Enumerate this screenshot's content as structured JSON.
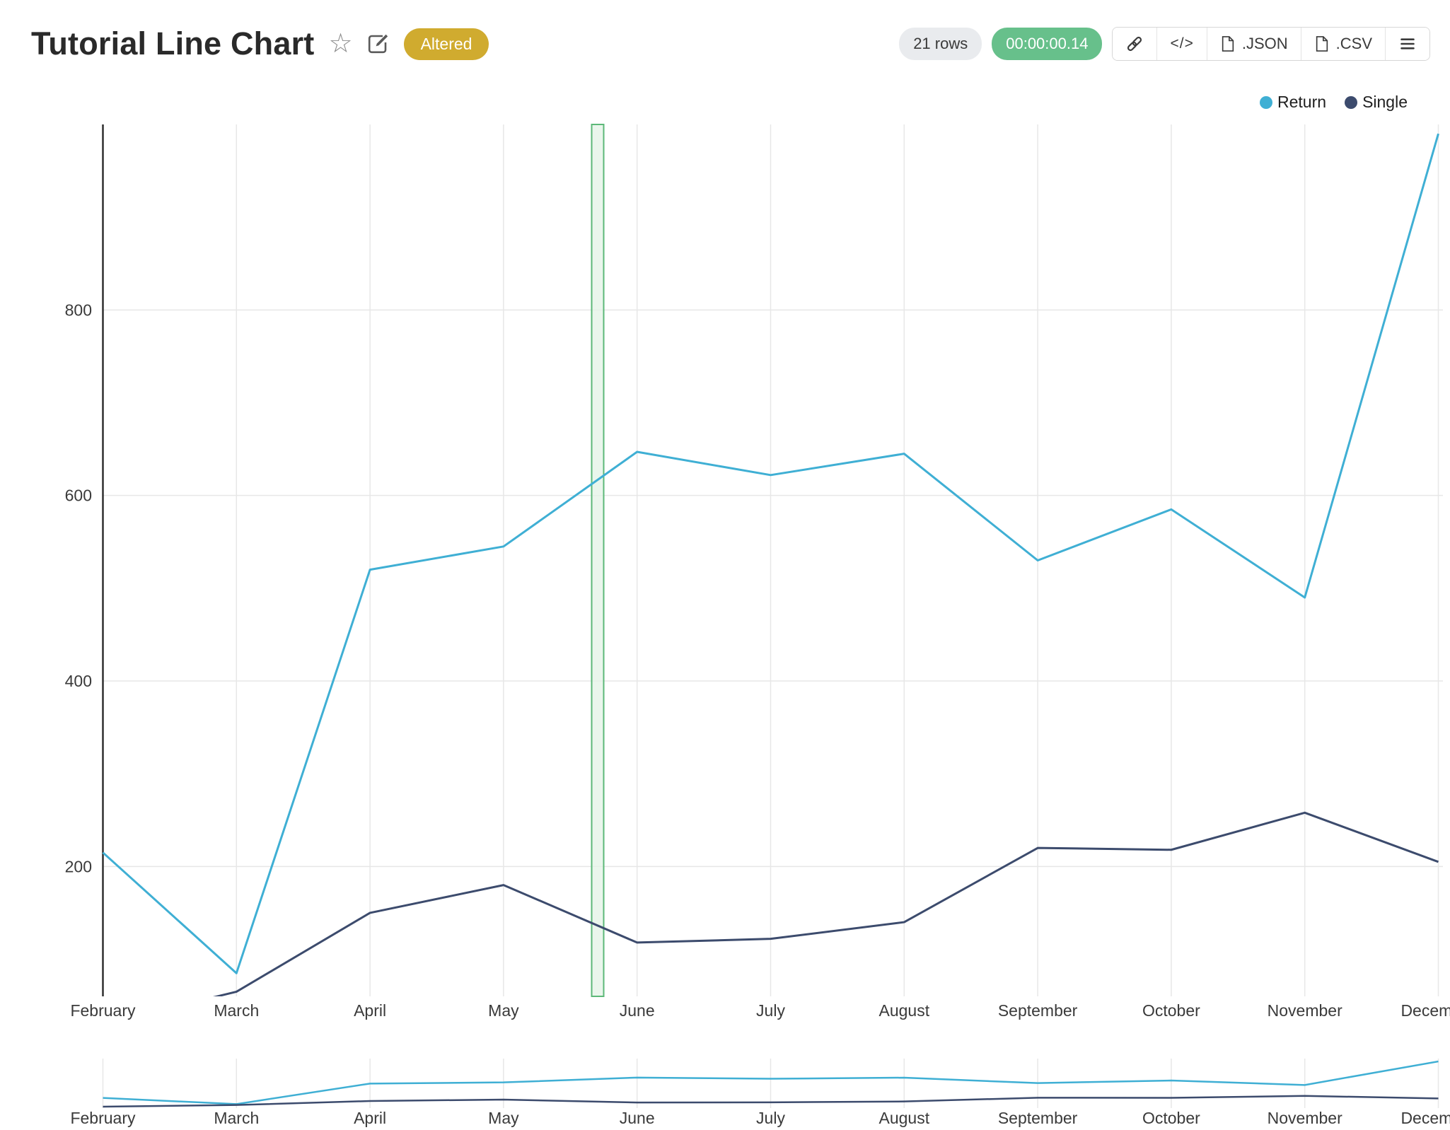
{
  "header": {
    "title": "Tutorial Line Chart",
    "altered_badge": "Altered",
    "rows_badge": "21 rows",
    "timer": "00:00:00.14",
    "code_button_label": "</>",
    "json_button_label": ".JSON",
    "csv_button_label": ".CSV"
  },
  "legend": {
    "items": [
      {
        "label": "Return",
        "color": "#3fafd4"
      },
      {
        "label": "Single",
        "color": "#3c4b6d"
      }
    ]
  },
  "chart_data": {
    "type": "line",
    "title": "Tutorial Line Chart",
    "categories": [
      "February",
      "March",
      "April",
      "May",
      "June",
      "July",
      "August",
      "September",
      "October",
      "November",
      "December"
    ],
    "series": [
      {
        "name": "Return",
        "color": "#3fafd4",
        "values": [
          215,
          85,
          520,
          545,
          647,
          622,
          645,
          530,
          585,
          490,
          990
        ]
      },
      {
        "name": "Single",
        "color": "#3c4b6d",
        "values": [
          30,
          65,
          150,
          180,
          118,
          122,
          140,
          220,
          218,
          258,
          205
        ]
      }
    ],
    "ylim": [
      60,
      1000
    ],
    "yticks": [
      200,
      400,
      600,
      800
    ],
    "grid": true,
    "legend_position": "top-right",
    "selection_band": {
      "start_index": 3.66,
      "end_index": 3.75,
      "stroke": "#5cb878",
      "fill": "#e3f3e6"
    },
    "overview_strip": {
      "ylim": [
        0,
        1050
      ]
    }
  },
  "colors": {
    "altered_badge_bg": "#d0ab2f",
    "rows_badge_bg": "#e9ebee",
    "timer_badge_bg": "#67c08b",
    "axis": "#2f2f2f",
    "gridline": "#e7e7e7"
  }
}
